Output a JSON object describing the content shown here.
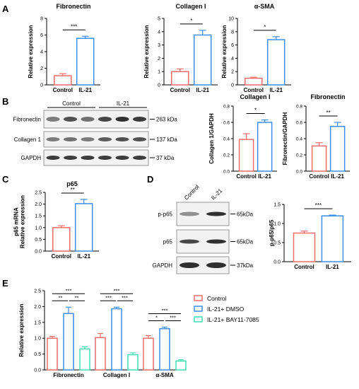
{
  "colors": {
    "control": "#f26b6b",
    "il21": "#3c8ee8",
    "bay": "#3fe0b4",
    "blot_bg": "#f2f2f2",
    "band": "#1b1b1b"
  },
  "panels": {
    "A": "A",
    "B": "B",
    "C": "C",
    "D": "D",
    "E": "E"
  },
  "chart_data": [
    {
      "id": "A1",
      "type": "bar",
      "title": "Fibronectin",
      "ylabel": "Relative expression",
      "categories": [
        "Control",
        "IL-21"
      ],
      "values": [
        1.1,
        5.6
      ],
      "errors": [
        0.25,
        0.25
      ],
      "ylim": [
        0,
        8
      ],
      "yticks": [
        "0",
        "2",
        "4",
        "6",
        "8"
      ],
      "significance": [
        "***"
      ]
    },
    {
      "id": "A2",
      "type": "bar",
      "title": "Collagen I",
      "ylabel": "Relative expression",
      "categories": [
        "Control",
        "IL-21"
      ],
      "values": [
        1.0,
        3.75
      ],
      "errors": [
        0.2,
        0.35
      ],
      "ylim": [
        0,
        5
      ],
      "yticks": [
        "0",
        "1",
        "2",
        "3",
        "4",
        "5"
      ],
      "significance": [
        "*"
      ]
    },
    {
      "id": "A3",
      "type": "bar",
      "title": "α-SMA",
      "ylabel": "Relative expression",
      "categories": [
        "Control",
        "IL-21"
      ],
      "values": [
        1.0,
        6.8
      ],
      "errors": [
        0.15,
        0.45
      ],
      "ylim": [
        0,
        10
      ],
      "yticks": [
        "0",
        "2",
        "4",
        "6",
        "8",
        "10"
      ],
      "significance": [
        "*"
      ]
    },
    {
      "id": "B1",
      "type": "bar",
      "title": "Collagen I",
      "ylabel": "Collagen 1/GAPDH",
      "categories": [
        "Control",
        "IL-21"
      ],
      "values": [
        0.39,
        0.6
      ],
      "errors": [
        0.07,
        0.03
      ],
      "ylim": [
        0,
        0.8
      ],
      "yticks": [
        "0.0",
        "0.2",
        "0.4",
        "0.6",
        "0.8"
      ],
      "significance": [
        "*"
      ]
    },
    {
      "id": "B2",
      "type": "bar",
      "title": "Fibronectin",
      "ylabel": "Fibronectin/GAPDH",
      "categories": [
        "Control",
        "IL-21"
      ],
      "values": [
        0.31,
        0.55
      ],
      "errors": [
        0.04,
        0.05
      ],
      "ylim": [
        0,
        0.8
      ],
      "yticks": [
        "0.0",
        "0.2",
        "0.4",
        "0.6",
        "0.8"
      ],
      "significance": [
        "**"
      ]
    },
    {
      "id": "C",
      "type": "bar",
      "title": "p65",
      "ylabel": "p65 mRNA\nRelative expression",
      "categories": [
        "Control",
        "IL-21"
      ],
      "values": [
        1.0,
        2.02
      ],
      "errors": [
        0.08,
        0.18
      ],
      "ylim": [
        0,
        2.5
      ],
      "yticks": [
        "0.0",
        "0.5",
        "1.0",
        "1.5",
        "2.0",
        "2.5"
      ],
      "significance": [
        "**"
      ]
    },
    {
      "id": "D",
      "type": "bar",
      "title": "",
      "ylabel": "p-p65/p65",
      "categories": [
        "Control",
        "IL-21"
      ],
      "values": [
        0.75,
        1.2
      ],
      "errors": [
        0.05,
        0.02
      ],
      "ylim": [
        0,
        1.5
      ],
      "yticks": [
        "0.0",
        "0.5",
        "1.0",
        "1.5"
      ],
      "significance": [
        "***"
      ]
    },
    {
      "id": "E",
      "type": "bar",
      "title": "",
      "ylabel": "Relative expression",
      "categories": [
        "Fibronectin",
        "Collagen I",
        "α-SMA"
      ],
      "ylim": [
        0,
        2.5
      ],
      "yticks": [
        "0.0",
        "0.5",
        "1.0",
        "1.5",
        "2.0",
        "2.5"
      ],
      "series": [
        {
          "name": "Control",
          "values": [
            1.0,
            1.02,
            1.0
          ],
          "errors": [
            0.06,
            0.13,
            0.08
          ]
        },
        {
          "name": "IL-21+ DMSO",
          "values": [
            1.78,
            1.93,
            1.3
          ],
          "errors": [
            0.2,
            0.05,
            0.05
          ]
        },
        {
          "name": "IL-21+ BAY11-7085",
          "values": [
            0.66,
            0.48,
            0.28
          ],
          "errors": [
            0.07,
            0.06,
            0.04
          ]
        }
      ],
      "significance": [
        [
          "***",
          "**",
          "**"
        ],
        [
          "***",
          "***",
          "***"
        ],
        [
          "***",
          "*",
          "***"
        ]
      ]
    }
  ],
  "blots": {
    "B": {
      "groups": [
        "Control",
        "IL-21"
      ],
      "rows": [
        {
          "label": "Fibronectin",
          "size": "263 kDa"
        },
        {
          "label": "Collagen 1",
          "size": "137 kDa"
        },
        {
          "label": "GAPDH",
          "size": "37 kDa"
        }
      ]
    },
    "D": {
      "lanes": [
        "Control",
        "IL-21"
      ],
      "rows": [
        {
          "label": "p-p65",
          "size": "65kDa"
        },
        {
          "label": "p65",
          "size": "65kDa"
        },
        {
          "label": "GAPDH",
          "size": "37kDa"
        }
      ]
    }
  }
}
